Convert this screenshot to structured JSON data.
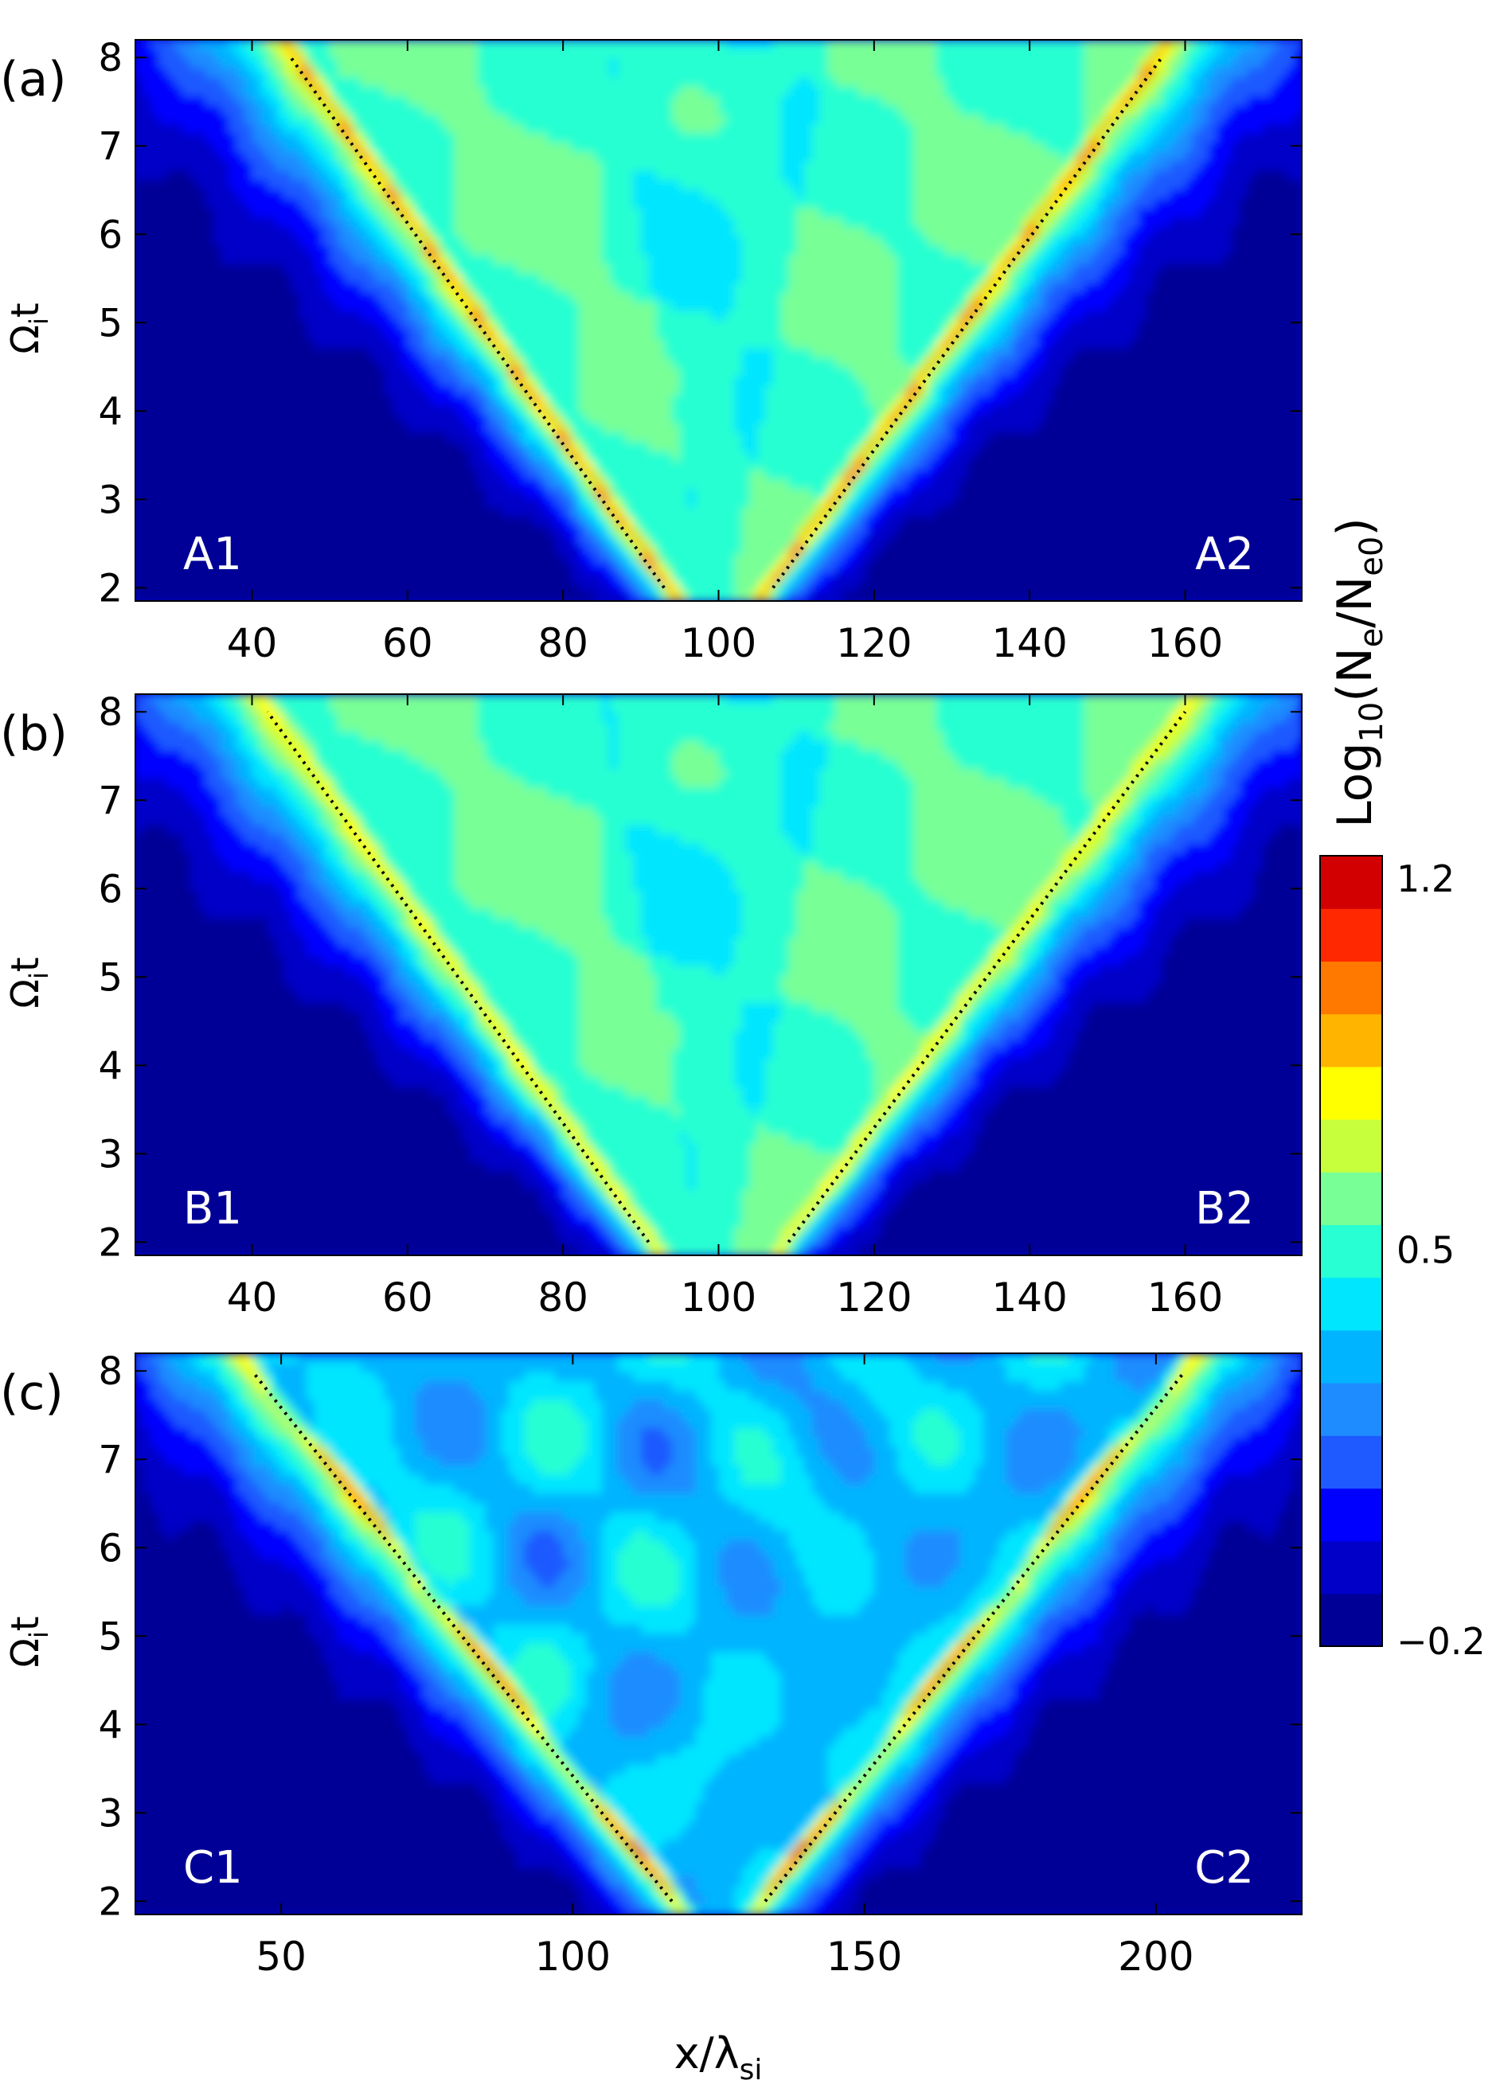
{
  "chart_data": [
    {
      "type": "heatmap",
      "panel_label": "(a)",
      "left_label": "A1",
      "right_label": "A2",
      "ylabel": "Ω_i t",
      "xlim": [
        25,
        175
      ],
      "ylim": [
        1.85,
        8.2
      ],
      "x_ticks": [
        40,
        60,
        80,
        100,
        120,
        140,
        160
      ],
      "y_ticks": [
        2,
        3,
        4,
        5,
        6,
        7,
        8
      ],
      "center_x": 100,
      "front_x_at_t2": [
        93,
        107
      ],
      "front_x_at_t8": [
        45,
        157
      ],
      "peak_log_density": 1.05
    },
    {
      "type": "heatmap",
      "panel_label": "(b)",
      "left_label": "B1",
      "right_label": "B2",
      "ylabel": "Ω_i t",
      "xlim": [
        25,
        175
      ],
      "ylim": [
        1.85,
        8.2
      ],
      "x_ticks": [
        40,
        60,
        80,
        100,
        120,
        140,
        160
      ],
      "y_ticks": [
        2,
        3,
        4,
        5,
        6,
        7,
        8
      ],
      "center_x": 100,
      "front_x_at_t2": [
        91,
        109
      ],
      "front_x_at_t8": [
        42,
        160
      ],
      "peak_log_density": 0.9
    },
    {
      "type": "heatmap",
      "panel_label": "(c)",
      "left_label": "C1",
      "right_label": "C2",
      "ylabel": "Ω_i t",
      "xlabel": "x/λ_si",
      "xlim": [
        25,
        225
      ],
      "ylim": [
        1.85,
        8.2
      ],
      "x_ticks": [
        50,
        100,
        150,
        200
      ],
      "y_ticks": [
        2,
        3,
        4,
        5,
        6,
        7,
        8
      ],
      "center_x": 125,
      "front_x_at_t2": [
        117,
        133
      ],
      "front_x_at_t8": [
        45,
        205
      ],
      "peak_log_density": 1.15
    }
  ],
  "colorbar": {
    "label": "Log_10(N_e/N_e0)",
    "min": -0.2,
    "max": 1.2,
    "tick_labels": [
      "1.2",
      "0.5",
      "−0.2"
    ],
    "tick_values": [
      1.2,
      0.5,
      -0.2
    ],
    "colors": [
      "#000096",
      "#0000c8",
      "#0000ff",
      "#1e5aff",
      "#1e8cff",
      "#00b4ff",
      "#00e6ff",
      "#28ffd2",
      "#78ff96",
      "#c8ff3c",
      "#ffff00",
      "#ffb400",
      "#ff7800",
      "#ff2800",
      "#d20000"
    ]
  },
  "labels": {
    "xlabel_main": "x/λ",
    "xlabel_sub": "si",
    "cb_main": "Log",
    "cb_sub1": "10",
    "cb_mid": "(N",
    "cb_sub2": "e",
    "cb_slash": "/N",
    "cb_sub3": "e0",
    "cb_close": ")"
  }
}
